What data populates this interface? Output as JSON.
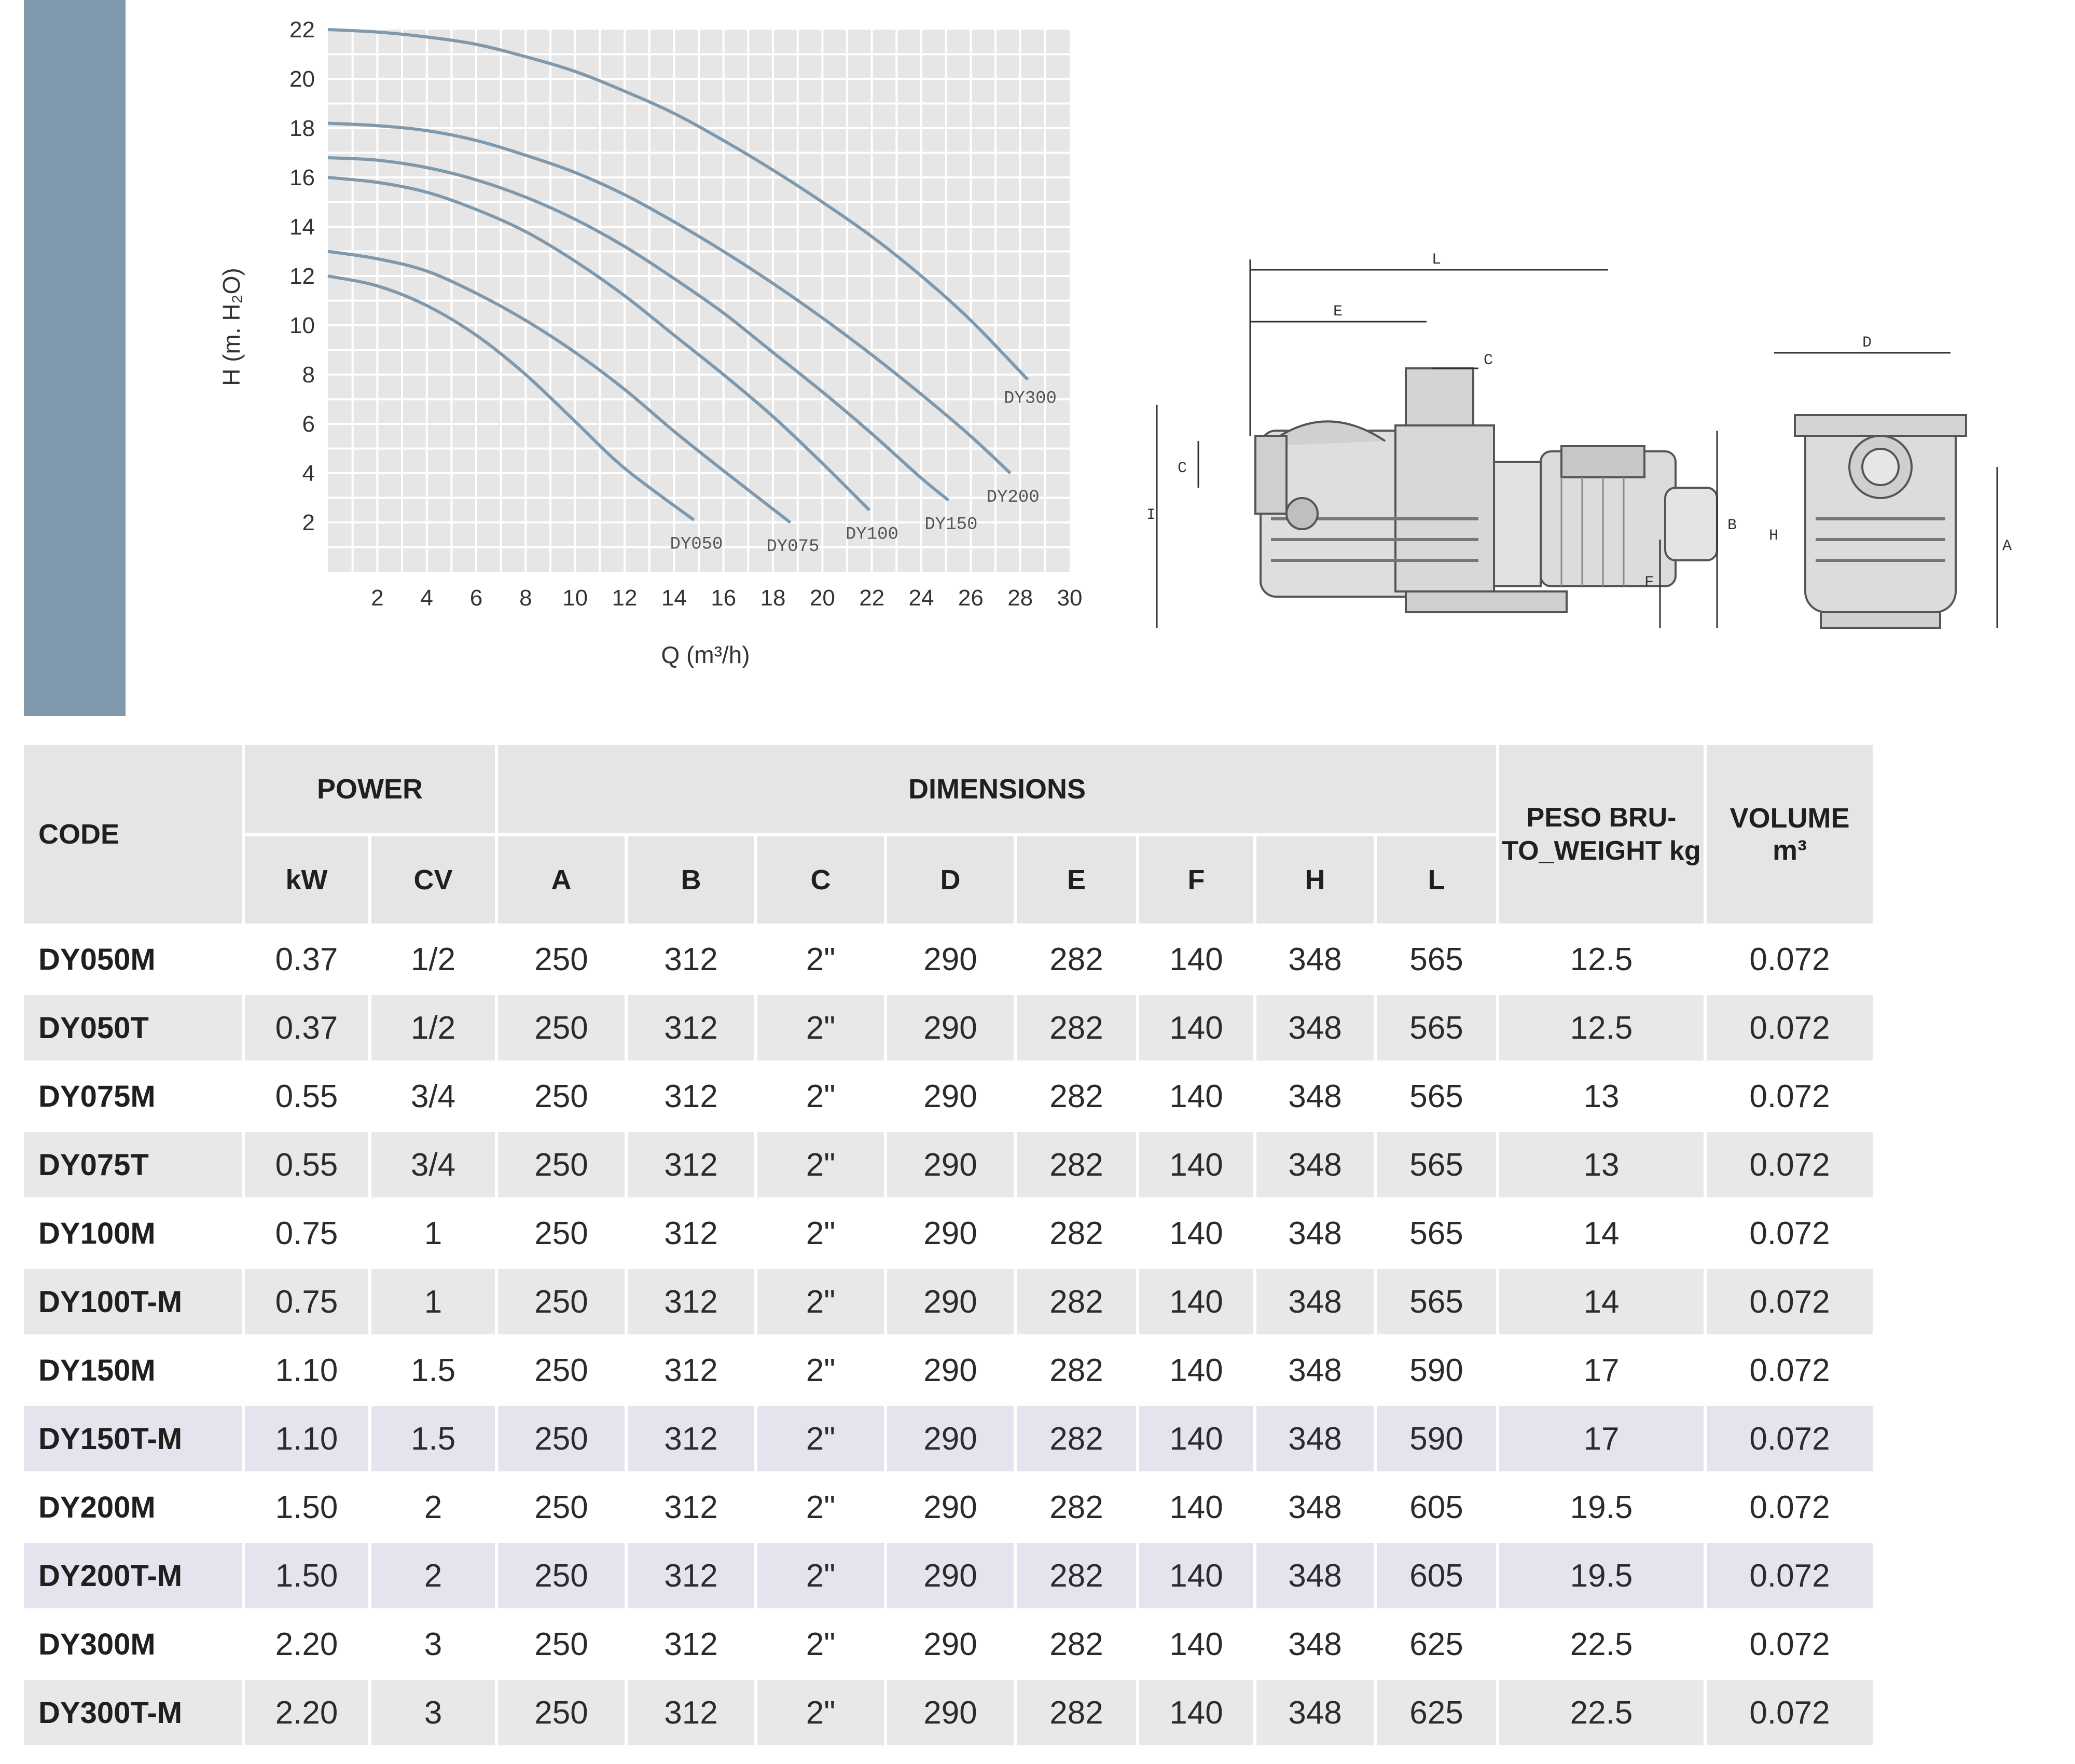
{
  "chart_data": {
    "type": "line",
    "xlabel": "Q (m³/h)",
    "ylabel": "H (m. H₂O)",
    "xlim": [
      0,
      30
    ],
    "ylim": [
      0,
      22
    ],
    "xticks": [
      2,
      4,
      6,
      8,
      10,
      12,
      14,
      16,
      18,
      20,
      22,
      24,
      26,
      28,
      30
    ],
    "yticks": [
      2,
      4,
      6,
      8,
      10,
      12,
      14,
      16,
      18,
      20,
      22
    ],
    "grid": true,
    "series": [
      {
        "name": "DY050",
        "x": [
          0,
          2,
          4,
          6,
          8,
          10,
          12,
          14.8
        ],
        "y": [
          12.0,
          11.6,
          10.8,
          9.6,
          8.0,
          6.1,
          4.2,
          2.1
        ]
      },
      {
        "name": "DY075",
        "x": [
          0,
          2,
          4,
          6,
          8,
          10,
          12,
          14,
          16,
          18.7
        ],
        "y": [
          13.0,
          12.7,
          12.2,
          11.3,
          10.2,
          8.9,
          7.4,
          5.7,
          4.1,
          2.0
        ]
      },
      {
        "name": "DY100",
        "x": [
          0,
          2,
          4,
          6,
          8,
          10,
          12,
          14,
          16,
          18,
          20,
          21.9
        ],
        "y": [
          16.0,
          15.8,
          15.4,
          14.7,
          13.8,
          12.6,
          11.2,
          9.6,
          8.0,
          6.3,
          4.4,
          2.5
        ]
      },
      {
        "name": "DY150",
        "x": [
          0,
          2,
          4,
          6,
          8,
          10,
          12,
          14,
          16,
          18,
          20,
          22,
          24,
          25.1
        ],
        "y": [
          16.8,
          16.7,
          16.4,
          15.9,
          15.2,
          14.3,
          13.2,
          11.9,
          10.5,
          8.9,
          7.3,
          5.6,
          3.8,
          2.9
        ]
      },
      {
        "name": "DY200",
        "x": [
          0,
          2,
          4,
          6,
          8,
          10,
          12,
          14,
          16,
          18,
          20,
          22,
          24,
          26,
          27.6
        ],
        "y": [
          18.2,
          18.1,
          17.9,
          17.5,
          16.9,
          16.2,
          15.3,
          14.2,
          13.0,
          11.7,
          10.3,
          8.8,
          7.2,
          5.5,
          4.0
        ]
      },
      {
        "name": "DY300",
        "x": [
          0,
          2,
          4,
          6,
          8,
          10,
          12,
          14,
          16,
          18,
          20,
          22,
          24,
          26,
          28.3
        ],
        "y": [
          22.0,
          21.9,
          21.7,
          21.4,
          20.9,
          20.3,
          19.5,
          18.6,
          17.5,
          16.3,
          15.0,
          13.6,
          12.0,
          10.2,
          7.8
        ]
      }
    ]
  },
  "drawing": {
    "side_labels": [
      "L",
      "E",
      "C",
      "C",
      "I",
      "B",
      "F",
      "H"
    ],
    "front_labels": [
      "D",
      "A"
    ]
  },
  "table": {
    "headers": {
      "code": "CODE",
      "power": "POWER",
      "dimensions": "DIMENSIONS",
      "peso": "PESO BRU-TO_WEIGHT kg",
      "volume": "VOLUME",
      "volume_unit": "m³",
      "sub": [
        "kW",
        "CV",
        "A",
        "B",
        "C",
        "D",
        "E",
        "F",
        "H",
        "L"
      ]
    },
    "rows": [
      {
        "code": "DY050M",
        "kw": "0.37",
        "cv": "1/2",
        "a": "250",
        "b": "312",
        "c": "2\"",
        "d": "290",
        "e": "282",
        "f": "140",
        "h": "348",
        "l": "565",
        "weight": "12.5",
        "volume": "0.072"
      },
      {
        "code": "DY050T",
        "kw": "0.37",
        "cv": "1/2",
        "a": "250",
        "b": "312",
        "c": "2\"",
        "d": "290",
        "e": "282",
        "f": "140",
        "h": "348",
        "l": "565",
        "weight": "12.5",
        "volume": "0.072"
      },
      {
        "code": "DY075M",
        "kw": "0.55",
        "cv": "3/4",
        "a": "250",
        "b": "312",
        "c": "2\"",
        "d": "290",
        "e": "282",
        "f": "140",
        "h": "348",
        "l": "565",
        "weight": "13",
        "volume": "0.072"
      },
      {
        "code": "DY075T",
        "kw": "0.55",
        "cv": "3/4",
        "a": "250",
        "b": "312",
        "c": "2\"",
        "d": "290",
        "e": "282",
        "f": "140",
        "h": "348",
        "l": "565",
        "weight": "13",
        "volume": "0.072"
      },
      {
        "code": "DY100M",
        "kw": "0.75",
        "cv": "1",
        "a": "250",
        "b": "312",
        "c": "2\"",
        "d": "290",
        "e": "282",
        "f": "140",
        "h": "348",
        "l": "565",
        "weight": "14",
        "volume": "0.072"
      },
      {
        "code": "DY100T-M",
        "kw": "0.75",
        "cv": "1",
        "a": "250",
        "b": "312",
        "c": "2\"",
        "d": "290",
        "e": "282",
        "f": "140",
        "h": "348",
        "l": "565",
        "weight": "14",
        "volume": "0.072"
      },
      {
        "code": "DY150M",
        "kw": "1.10",
        "cv": "1.5",
        "a": "250",
        "b": "312",
        "c": "2\"",
        "d": "290",
        "e": "282",
        "f": "140",
        "h": "348",
        "l": "590",
        "weight": "17",
        "volume": "0.072"
      },
      {
        "code": "DY150T-M",
        "kw": "1.10",
        "cv": "1.5",
        "a": "250",
        "b": "312",
        "c": "2\"",
        "d": "290",
        "e": "282",
        "f": "140",
        "h": "348",
        "l": "590",
        "weight": "17",
        "volume": "0.072"
      },
      {
        "code": "DY200M",
        "kw": "1.50",
        "cv": "2",
        "a": "250",
        "b": "312",
        "c": "2\"",
        "d": "290",
        "e": "282",
        "f": "140",
        "h": "348",
        "l": "605",
        "weight": "19.5",
        "volume": "0.072"
      },
      {
        "code": "DY200T-M",
        "kw": "1.50",
        "cv": "2",
        "a": "250",
        "b": "312",
        "c": "2\"",
        "d": "290",
        "e": "282",
        "f": "140",
        "h": "348",
        "l": "605",
        "weight": "19.5",
        "volume": "0.072"
      },
      {
        "code": "DY300M",
        "kw": "2.20",
        "cv": "3",
        "a": "250",
        "b": "312",
        "c": "2\"",
        "d": "290",
        "e": "282",
        "f": "140",
        "h": "348",
        "l": "625",
        "weight": "22.5",
        "volume": "0.072"
      },
      {
        "code": "DY300T-M",
        "kw": "2.20",
        "cv": "3",
        "a": "250",
        "b": "312",
        "c": "2\"",
        "d": "290",
        "e": "282",
        "f": "140",
        "h": "348",
        "l": "625",
        "weight": "22.5",
        "volume": "0.072"
      }
    ]
  },
  "colors": {
    "side_bar": "#7f98ab",
    "curve": "#7f98ab",
    "header_bg": "#e5e5e5",
    "row_grey": "#e8e8e8",
    "row_lavender": "#e6e3ef"
  }
}
